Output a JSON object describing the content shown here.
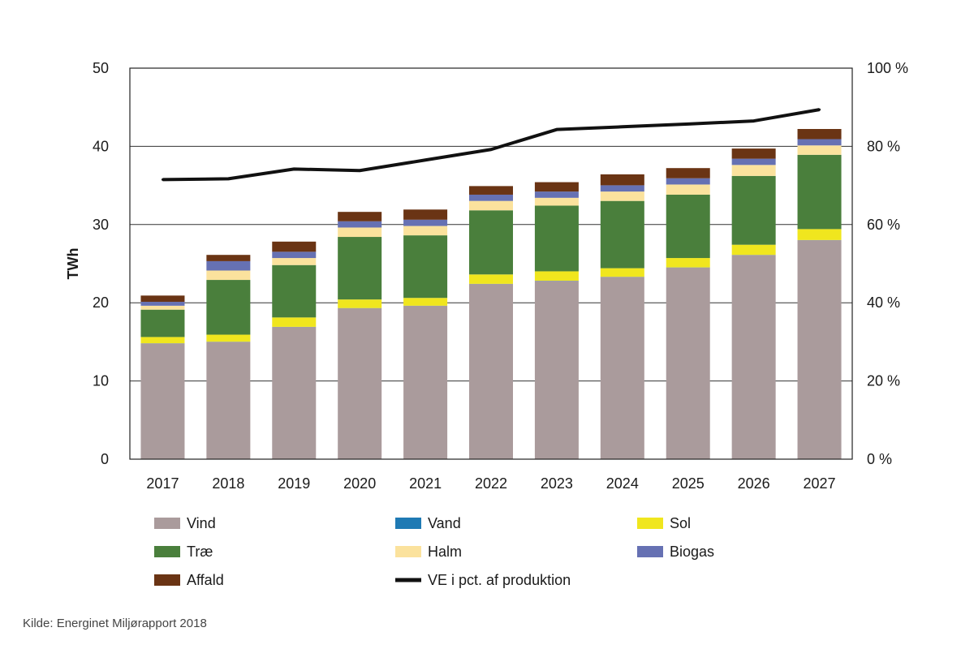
{
  "chart_data": {
    "type": "bar",
    "stacked": true,
    "categories": [
      "2017",
      "2018",
      "2019",
      "2020",
      "2021",
      "2022",
      "2023",
      "2024",
      "2025",
      "2026",
      "2027"
    ],
    "ylabel": "TWh",
    "ylim": [
      0,
      50
    ],
    "y_ticks": [
      "0",
      "10",
      "20",
      "30",
      "40",
      "50"
    ],
    "y2lim": [
      0,
      100
    ],
    "y2_ticks": [
      "0 %",
      "20 %",
      "40 %",
      "60 %",
      "80 %",
      "100 %"
    ],
    "grid": true,
    "legend_position": "bottom",
    "series": [
      {
        "name": "Vind",
        "color": "#aa9b9c",
        "values": [
          14.8,
          15.0,
          16.9,
          19.3,
          19.6,
          22.4,
          22.8,
          23.3,
          24.5,
          26.1,
          28.0
        ]
      },
      {
        "name": "Vand",
        "color": "#1f7ab4",
        "values": [
          0.02,
          0.02,
          0.02,
          0.02,
          0.02,
          0.02,
          0.02,
          0.02,
          0.02,
          0.02,
          0.02
        ]
      },
      {
        "name": "Sol",
        "color": "#f0e61e",
        "values": [
          0.8,
          0.9,
          1.2,
          1.1,
          1.0,
          1.2,
          1.2,
          1.1,
          1.2,
          1.3,
          1.4
        ]
      },
      {
        "name": "Træ",
        "color": "#4a7f3c",
        "values": [
          3.5,
          7.0,
          6.7,
          8.0,
          8.0,
          8.2,
          8.4,
          8.6,
          8.1,
          8.8,
          9.5
        ]
      },
      {
        "name": "Halm",
        "color": "#fbe29d",
        "values": [
          0.5,
          1.2,
          0.9,
          1.2,
          1.2,
          1.2,
          1.0,
          1.2,
          1.3,
          1.4,
          1.2
        ]
      },
      {
        "name": "Biogas",
        "color": "#6671b3",
        "values": [
          0.5,
          1.2,
          0.8,
          0.8,
          0.8,
          0.8,
          0.8,
          0.8,
          0.8,
          0.8,
          0.8
        ]
      },
      {
        "name": "Affald",
        "color": "#6a3414",
        "values": [
          0.8,
          0.8,
          1.3,
          1.2,
          1.3,
          1.1,
          1.2,
          1.4,
          1.3,
          1.3,
          1.3
        ]
      }
    ],
    "line_series": {
      "name": "VE i pct. af produktion",
      "color": "#111111",
      "axis": "right",
      "values": [
        71.5,
        71.7,
        74.2,
        73.8,
        76.5,
        79.2,
        84.3,
        85.0,
        85.7,
        86.5,
        89.4
      ]
    }
  },
  "source": "Kilde: Energinet Miljørapport 2018"
}
